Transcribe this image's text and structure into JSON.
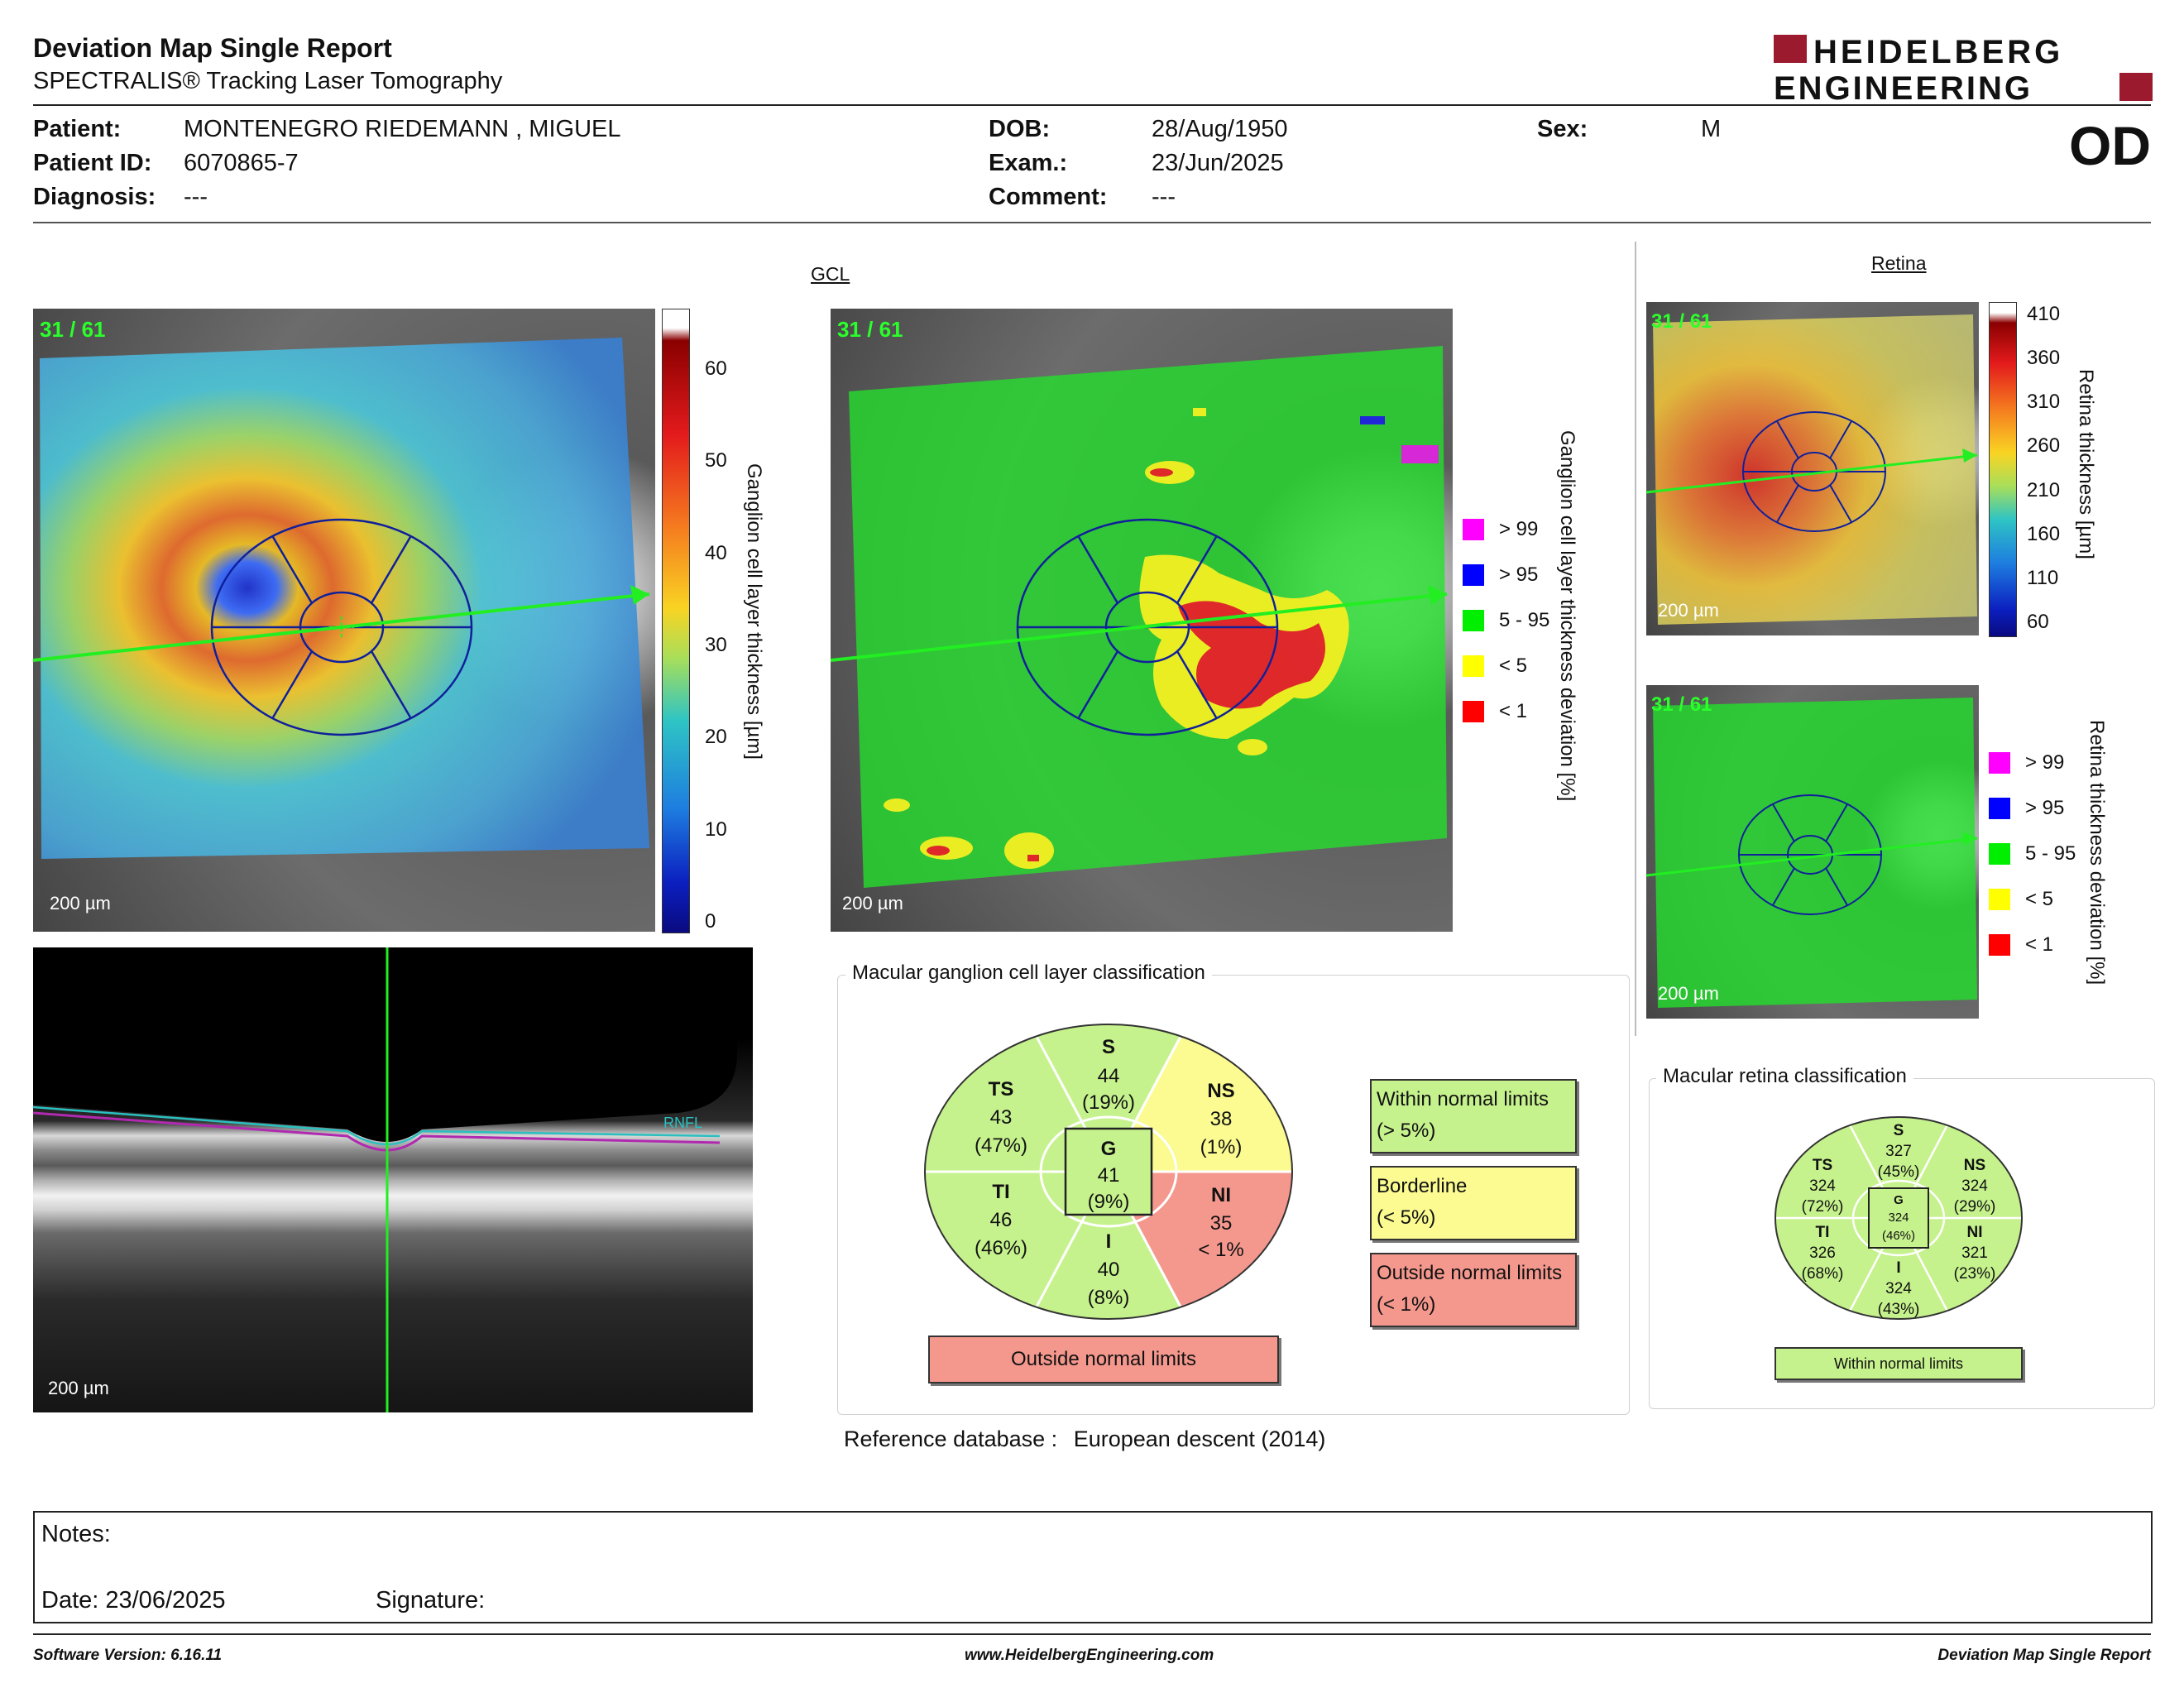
{
  "report": {
    "title": "Deviation Map Single Report",
    "subtitle": "SPECTRALIS® Tracking Laser Tomography",
    "logo_line1": "HEIDELBERG",
    "logo_line2": "ENGINEERING",
    "eye": "OD"
  },
  "patient": {
    "patient_label": "Patient:",
    "patient_value": "MONTENEGRO RIEDEMANN , MIGUEL",
    "id_label": "Patient ID:",
    "id_value": "6070865-7",
    "diagnosis_label": "Diagnosis:",
    "diagnosis_value": "---",
    "dob_label": "DOB:",
    "dob_value": "28/Aug/1950",
    "exam_label": "Exam.:",
    "exam_value": "23/Jun/2025",
    "comment_label": "Comment:",
    "comment_value": "---",
    "sex_label": "Sex:",
    "sex_value": "M"
  },
  "gcl": {
    "section_label": "GCL",
    "frame": "31 / 61",
    "scale": "200 µm",
    "thickness_axis": "Ganglion cell layer thickness [µm]",
    "thickness_ticks": [
      "60",
      "50",
      "40",
      "30",
      "20",
      "10",
      "0"
    ],
    "deviation_axis": "Ganglion cell layer thickness deviation [%]",
    "legend": [
      {
        "label": "> 99",
        "color": "#ff00ff"
      },
      {
        "label": "> 95",
        "color": "#0000ff"
      },
      {
        "label": "5 - 95",
        "color": "#00ee00"
      },
      {
        "label": "< 5",
        "color": "#ffff00"
      },
      {
        "label": "< 1",
        "color": "#ff0000"
      }
    ]
  },
  "oct": {
    "scale": "200 µm",
    "layer_label": "RNFL"
  },
  "gcl_classification": {
    "panel_title": "Macular ganglion cell layer classification",
    "sectors": {
      "S": {
        "name": "S",
        "value": "44",
        "pct": "(19%)",
        "color": "#c6f28d"
      },
      "NS": {
        "name": "NS",
        "value": "38",
        "pct": "(1%)",
        "color": "#fbfb91"
      },
      "NI": {
        "name": "NI",
        "value": "35",
        "pct": "< 1%",
        "color": "#f4988e"
      },
      "I": {
        "name": "I",
        "value": "40",
        "pct": "(8%)",
        "color": "#c6f28d"
      },
      "TI": {
        "name": "TI",
        "value": "46",
        "pct": "(46%)",
        "color": "#c6f28d"
      },
      "TS": {
        "name": "TS",
        "value": "43",
        "pct": "(47%)",
        "color": "#c6f28d"
      },
      "G": {
        "name": "G",
        "value": "41",
        "pct": "(9%)",
        "color": "#c6f28d"
      }
    },
    "overall": "Outside normal limits",
    "key_within": "Within normal limits",
    "key_within_sub": "(> 5%)",
    "key_border": "Borderline",
    "key_border_sub": "(< 5%)",
    "key_outside": "Outside normal limits",
    "key_outside_sub": "(< 1%)",
    "reference_label": "Reference database :",
    "reference_value": "European descent (2014)"
  },
  "retina": {
    "section_label": "Retina",
    "frame": "31 / 61",
    "scale": "200 µm",
    "thickness_axis": "Retina thickness [µm]",
    "thickness_ticks": [
      "410",
      "360",
      "310",
      "260",
      "210",
      "160",
      "110",
      "60"
    ],
    "deviation_axis": "Retina thickness deviation [%]",
    "legend": [
      {
        "label": "> 99",
        "color": "#ff00ff"
      },
      {
        "label": "> 95",
        "color": "#0000ff"
      },
      {
        "label": "5 - 95",
        "color": "#00ee00"
      },
      {
        "label": "< 5",
        "color": "#ffff00"
      },
      {
        "label": "< 1",
        "color": "#ff0000"
      }
    ]
  },
  "retina_classification": {
    "panel_title": "Macular retina classification",
    "sectors": {
      "S": {
        "name": "S",
        "value": "327",
        "pct": "(45%)"
      },
      "NS": {
        "name": "NS",
        "value": "324",
        "pct": "(29%)"
      },
      "NI": {
        "name": "NI",
        "value": "321",
        "pct": "(23%)"
      },
      "I": {
        "name": "I",
        "value": "324",
        "pct": "(43%)"
      },
      "TI": {
        "name": "TI",
        "value": "326",
        "pct": "(68%)"
      },
      "TS": {
        "name": "TS",
        "value": "324",
        "pct": "(72%)"
      },
      "G": {
        "name": "G",
        "value": "324",
        "pct": "(46%)"
      }
    },
    "overall": "Within normal limits"
  },
  "notes": {
    "notes_label": "Notes:",
    "date_label": "Date: 23/06/2025",
    "signature_label": "Signature:"
  },
  "footer": {
    "software": "Software Version: 6.16.11",
    "website": "www.HeidelbergEngineering.com",
    "report_name": "Deviation Map Single Report"
  }
}
